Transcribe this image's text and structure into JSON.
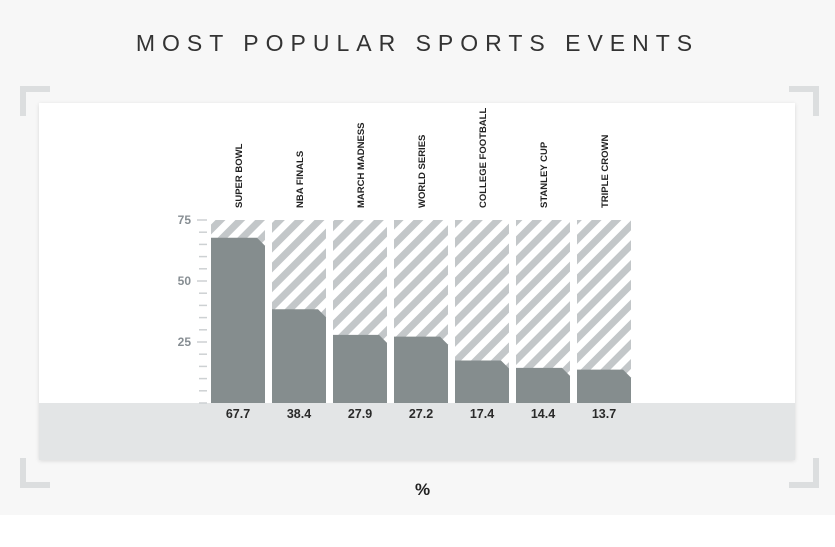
{
  "title": "MOST POPULAR SPORTS EVENTS",
  "unit_label": "%",
  "colors": {
    "bar_fill": "#858d8e",
    "stripe": "#c3c7c9",
    "tick": "#cdd1d3",
    "tick_label": "#878e93",
    "value_label": "#2a2a2a",
    "category_label": "#222222"
  },
  "chart_data": {
    "type": "bar",
    "title": "MOST POPULAR SPORTS EVENTS",
    "xlabel": "",
    "ylabel": "%",
    "categories": [
      "SUPER BOWL",
      "NBA FINALS",
      "MARCH MADNESS",
      "WORLD SERIES",
      "COLLEGE FOOTBALL",
      "STANLEY CUP",
      "TRIPLE CROWN"
    ],
    "values": [
      67.7,
      38.4,
      27.9,
      27.2,
      17.4,
      14.4,
      13.7
    ],
    "value_labels": [
      "67.7",
      "38.4",
      "27.9",
      "27.2",
      "17.4",
      "14.4",
      "13.7"
    ],
    "ylim": [
      0,
      75
    ],
    "y_ticks": [
      25,
      50,
      75
    ],
    "grid": false
  }
}
